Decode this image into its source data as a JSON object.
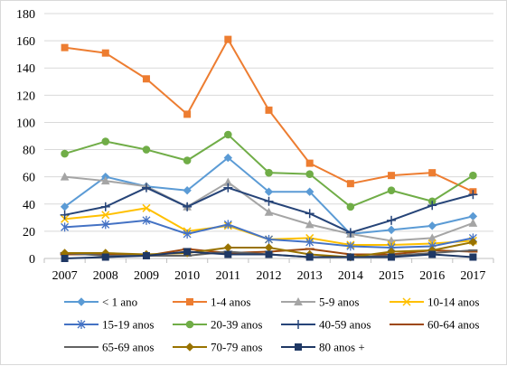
{
  "chart_data": {
    "type": "line",
    "title": "",
    "xlabel": "",
    "ylabel": "",
    "x": [
      "2007",
      "2008",
      "2009",
      "2010",
      "2011",
      "2012",
      "2013",
      "2014",
      "2015",
      "2016",
      "2017"
    ],
    "ylim": [
      0,
      180
    ],
    "yticks": [
      0,
      20,
      40,
      60,
      80,
      100,
      120,
      140,
      160,
      180
    ],
    "grid": "horizontal",
    "legend_position": "bottom",
    "series": [
      {
        "name": "< 1 ano",
        "color": "#5B9BD5",
        "marker": "diamond",
        "values": [
          38,
          60,
          53,
          50,
          74,
          49,
          49,
          18,
          21,
          24,
          31
        ]
      },
      {
        "name": "1-4 anos",
        "color": "#ED7D31",
        "marker": "square",
        "values": [
          155,
          151,
          132,
          106,
          161,
          109,
          70,
          55,
          61,
          63,
          49
        ]
      },
      {
        "name": "5-9 anos",
        "color": "#A5A5A5",
        "marker": "triangle",
        "values": [
          60,
          57,
          53,
          38,
          56,
          34,
          25,
          18,
          13,
          15,
          26
        ]
      },
      {
        "name": "10-14 anos",
        "color": "#FFC000",
        "marker": "x",
        "values": [
          29,
          32,
          37,
          20,
          24,
          14,
          15,
          10,
          10,
          11,
          13
        ]
      },
      {
        "name": "15-19 anos",
        "color": "#4472C4",
        "marker": "asterisk",
        "values": [
          23,
          25,
          28,
          18,
          25,
          14,
          12,
          9,
          8,
          9,
          15
        ]
      },
      {
        "name": "20-39 anos",
        "color": "#70AD47",
        "marker": "circle",
        "values": [
          77,
          86,
          80,
          72,
          91,
          63,
          62,
          38,
          50,
          42,
          61
        ]
      },
      {
        "name": "40-59 anos",
        "color": "#264478",
        "marker": "plus",
        "values": [
          32,
          38,
          52,
          38,
          52,
          42,
          33,
          19,
          28,
          39,
          47
        ]
      },
      {
        "name": "60-64 anos",
        "color": "#9E480E",
        "marker": "dash",
        "values": [
          3,
          3,
          2,
          7,
          4,
          5,
          7,
          3,
          3,
          6,
          5
        ]
      },
      {
        "name": "65-69 anos",
        "color": "#636363",
        "marker": "dash",
        "values": [
          4,
          2,
          2,
          2,
          5,
          3,
          1,
          1,
          2,
          4,
          6
        ]
      },
      {
        "name": "70-79 anos",
        "color": "#997300",
        "marker": "diamond",
        "values": [
          4,
          4,
          3,
          4,
          8,
          8,
          3,
          1,
          5,
          6,
          12
        ]
      },
      {
        "name": "80 anos +",
        "color": "#1F3864",
        "marker": "square",
        "values": [
          0,
          1,
          2,
          5,
          3,
          3,
          1,
          1,
          1,
          3,
          1
        ]
      }
    ]
  }
}
